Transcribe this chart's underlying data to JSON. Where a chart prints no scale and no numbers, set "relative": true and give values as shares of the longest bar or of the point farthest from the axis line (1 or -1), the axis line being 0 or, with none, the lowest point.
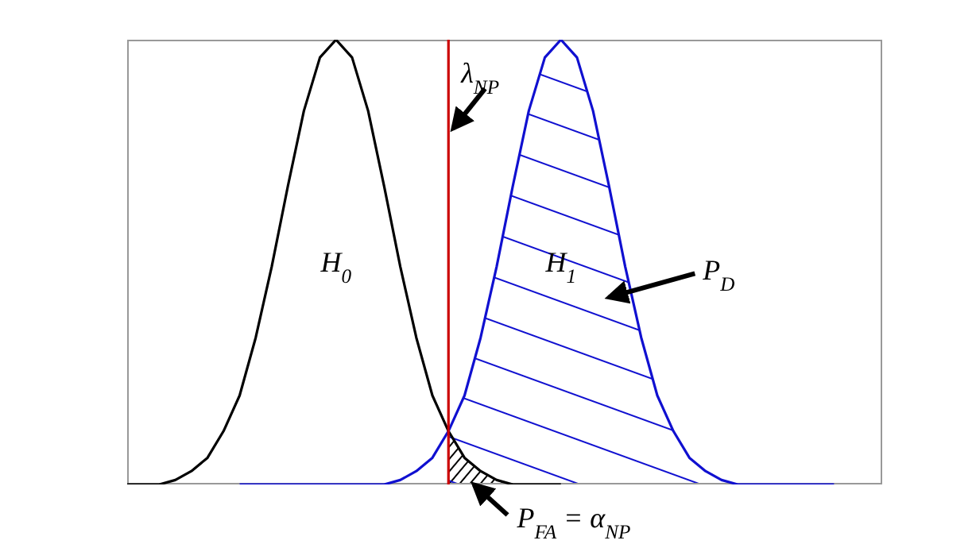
{
  "chart_data": {
    "type": "line",
    "relative": true,
    "tick_labels": false,
    "line_style": "solid",
    "categories": [
      null,
      null,
      null,
      null,
      null,
      null,
      null,
      null,
      null,
      null,
      null,
      null,
      null,
      null,
      null,
      null,
      null,
      null,
      null,
      null,
      null,
      null,
      null,
      null,
      null,
      null,
      null,
      null,
      null,
      null,
      null,
      null,
      null,
      null,
      null,
      null,
      null,
      null,
      null,
      null,
      null,
      null,
      null,
      null,
      null,
      null,
      null,
      null
    ],
    "series": [
      {
        "color": "#000000",
        "values": [
          0,
          0,
          0,
          0.01,
          0.03,
          0.06,
          0.12,
          0.2,
          0.33,
          0.49,
          0.67,
          0.84,
          0.96,
          1,
          0.96,
          0.84,
          0.67,
          0.49,
          0.33,
          0.2,
          0.12,
          0.06,
          0.03,
          0.01,
          0,
          0,
          0,
          0,
          null,
          null,
          null,
          null,
          null,
          null,
          null,
          null,
          null,
          null,
          null,
          null,
          null,
          null,
          null,
          null,
          null,
          null,
          null,
          null
        ]
      },
      {
        "color": "#1010d0",
        "values": [
          null,
          null,
          null,
          null,
          null,
          null,
          null,
          0,
          0,
          0,
          0,
          0,
          0,
          0,
          0,
          0,
          0,
          0.01,
          0.03,
          0.06,
          0.12,
          0.2,
          0.33,
          0.49,
          0.67,
          0.84,
          0.96,
          1,
          0.96,
          0.84,
          0.67,
          0.49,
          0.33,
          0.2,
          0.12,
          0.06,
          0.03,
          0.01,
          0,
          0,
          0,
          0,
          0,
          0,
          0,
          null,
          null,
          null
        ]
      }
    ],
    "annotations": [
      "H$_{0}$",
      "H$_{1}$",
      "λ$_{NP}$",
      "P$_{D}$",
      "P$_{FA}$ = α$_{NP}$"
    ]
  }
}
